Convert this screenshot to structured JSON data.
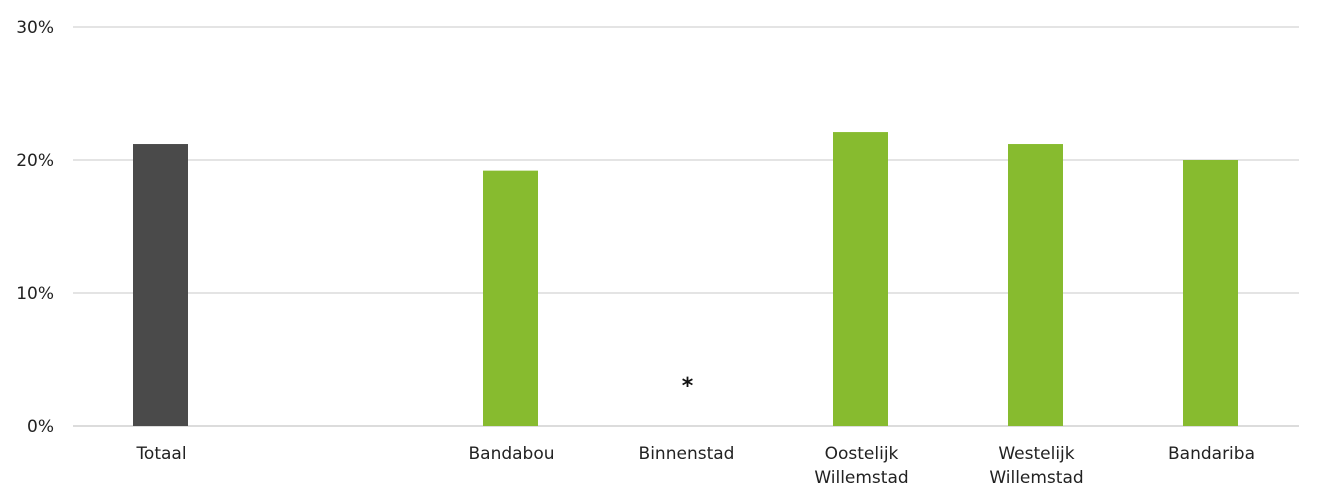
{
  "chart_data": {
    "type": "bar",
    "categories": [
      "Totaal",
      "",
      "Bandabou",
      "Binnenstad",
      "Oostelijk Willemstad",
      "Westelijk Willemstad",
      "Bandariba"
    ],
    "category_lines": [
      [
        "Totaal"
      ],
      [],
      [
        "Bandabou"
      ],
      [
        "Binnenstad"
      ],
      [
        "Oostelijk",
        "Willemstad"
      ],
      [
        "Westelijk",
        "Willemstad"
      ],
      [
        "Bandariba"
      ]
    ],
    "values": [
      21.2,
      null,
      19.2,
      null,
      22.1,
      21.2,
      20.0
    ],
    "bar_colors": [
      "#4a4a4a",
      null,
      "#87bb2f",
      null,
      "#87bb2f",
      "#87bb2f",
      "#87bb2f"
    ],
    "markers": [
      null,
      null,
      null,
      "*",
      null,
      null,
      null
    ],
    "ylim": [
      0,
      30
    ],
    "yticks": [
      0,
      10,
      20,
      30
    ],
    "ytick_labels": [
      "0%",
      "10%",
      "20%",
      "30%"
    ],
    "grid": true,
    "title": "",
    "xlabel": "",
    "ylabel": ""
  }
}
